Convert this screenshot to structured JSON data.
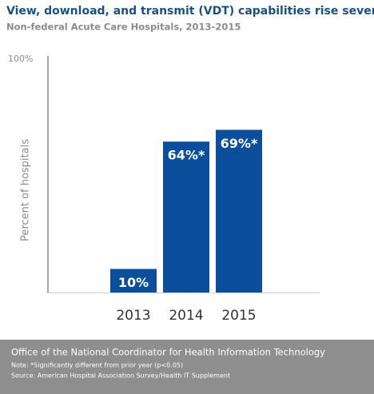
{
  "chart_data": {
    "type": "bar",
    "title": "View, download, and transmit (VDT) capabilities rise seven-fold",
    "subtitle": "Non-federal Acute Care Hospitals, 2013-2015",
    "y_label": "Percent of hospitals",
    "categories": [
      "2013",
      "2014",
      "2015"
    ],
    "values": [
      10,
      64,
      69
    ],
    "value_labels": [
      "10%",
      "64%*",
      "69%*"
    ],
    "color": "#0b4f9c",
    "ylim": [
      0,
      100
    ],
    "yticks": [
      {
        "value": 100,
        "label": "100%"
      }
    ],
    "grid": false,
    "organization": "Office of the National Coordinator for Health Information Technology",
    "note": "Note: *Significantly different from prior year (p<0.05)",
    "source": "Source: American Hospital Association Survey/Health IT Supplement"
  }
}
